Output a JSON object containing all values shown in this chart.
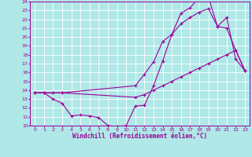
{
  "background_color": "#b0e8e8",
  "grid_color": "#ffffff",
  "line_color": "#990099",
  "xlabel": "Windchill (Refroidissement éolien,°C)",
  "xlabel_color": "#990099",
  "xlim": [
    -0.5,
    23.5
  ],
  "ylim": [
    10,
    24
  ],
  "xticks": [
    0,
    1,
    2,
    3,
    4,
    5,
    6,
    7,
    8,
    9,
    10,
    11,
    12,
    13,
    14,
    15,
    16,
    17,
    18,
    19,
    20,
    21,
    22,
    23
  ],
  "yticks": [
    10,
    11,
    12,
    13,
    14,
    15,
    16,
    17,
    18,
    19,
    20,
    21,
    22,
    23,
    24
  ],
  "line1_x": [
    0,
    1,
    2,
    3,
    4,
    5,
    6,
    7,
    8,
    9,
    10,
    11,
    12,
    13,
    14,
    15,
    16,
    17,
    18,
    19,
    20,
    21,
    22,
    23
  ],
  "line1_y": [
    13.7,
    13.7,
    13.0,
    12.5,
    11.1,
    11.2,
    11.1,
    10.9,
    10.0,
    9.9,
    10.0,
    12.2,
    12.3,
    14.5,
    17.3,
    20.3,
    22.7,
    23.3,
    24.5,
    24.5,
    21.2,
    22.2,
    17.5,
    16.2
  ],
  "line2_x": [
    0,
    1,
    2,
    3,
    11,
    12,
    13,
    14,
    15,
    16,
    17,
    18,
    19,
    20,
    21,
    22,
    23
  ],
  "line2_y": [
    13.7,
    13.7,
    13.7,
    13.7,
    14.5,
    15.8,
    17.2,
    19.5,
    20.3,
    21.5,
    22.2,
    22.8,
    23.2,
    21.2,
    21.0,
    18.5,
    16.2
  ],
  "line3_x": [
    0,
    1,
    2,
    3,
    11,
    12,
    13,
    14,
    15,
    16,
    17,
    18,
    19,
    20,
    21,
    22,
    23
  ],
  "line3_y": [
    13.7,
    13.7,
    13.7,
    13.7,
    13.2,
    13.5,
    14.0,
    14.5,
    15.0,
    15.5,
    16.0,
    16.5,
    17.0,
    17.5,
    18.0,
    18.5,
    16.2
  ]
}
